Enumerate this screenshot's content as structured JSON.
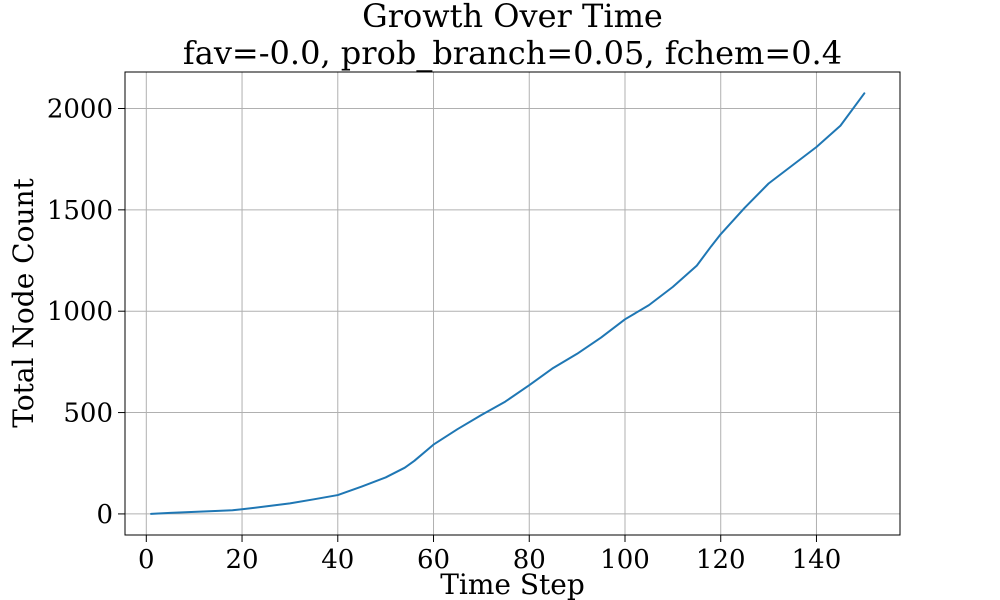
{
  "chart_data": {
    "type": "line",
    "title": "Growth Over Time",
    "subtitle": "fav=-0.0, prob_branch=0.05, fchem=0.4",
    "xlabel": "Time Step",
    "ylabel": "Total Node Count",
    "xlim": [
      -4.45,
      157.45
    ],
    "ylim": [
      -104,
      2180
    ],
    "xticks": [
      0,
      20,
      40,
      60,
      80,
      100,
      120,
      140
    ],
    "yticks": [
      0,
      500,
      1000,
      1500,
      2000
    ],
    "grid": true,
    "line_color": "#1f77b4",
    "series": [
      {
        "x": [
          1,
          5,
          10,
          15,
          18,
          20,
          25,
          30,
          35,
          40,
          45,
          50,
          54,
          56,
          60,
          65,
          70,
          75,
          80,
          85,
          90,
          95,
          100,
          105,
          110,
          115,
          118,
          120,
          125,
          130,
          135,
          140,
          145,
          150
        ],
        "y": [
          0,
          5,
          10,
          15,
          18,
          23,
          37,
          52,
          72,
          93,
          135,
          180,
          228,
          262,
          342,
          418,
          488,
          554,
          635,
          720,
          790,
          870,
          960,
          1030,
          1120,
          1225,
          1320,
          1380,
          1510,
          1630,
          1720,
          1810,
          1915,
          2075
        ]
      }
    ]
  }
}
